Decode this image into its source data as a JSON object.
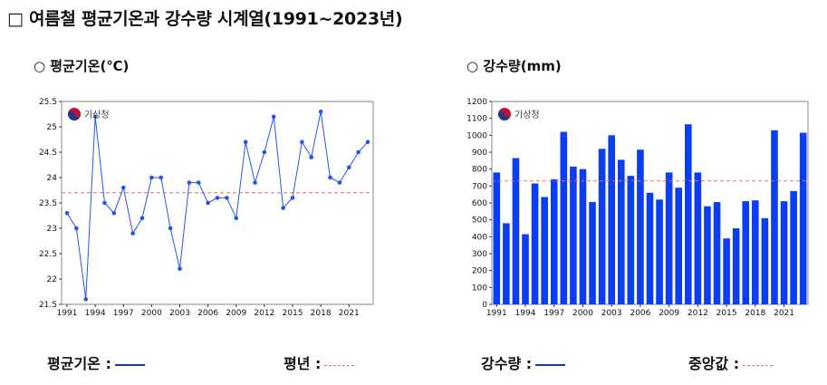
{
  "page": {
    "title": "□ 여름철 평균기온과 강수량 시계열(1991~2023년)"
  },
  "logo_text": "기상청",
  "charts_ui": {
    "left_subtitle": "○ 평균기온(℃)",
    "right_subtitle": "○ 강수량(mm)"
  },
  "legend": {
    "temp_label": "평균기온 :",
    "normal_label": "평년 :",
    "precip_label": "강수량 :",
    "median_label": "중앙값 :"
  },
  "colors": {
    "line": "#2255ee",
    "bar": "#0b3ef0",
    "ref": "#e07060"
  },
  "chart_data": [
    {
      "type": "line",
      "title": "○ 평균기온(℃)",
      "x": [
        1991,
        1992,
        1993,
        1994,
        1995,
        1996,
        1997,
        1998,
        1999,
        2000,
        2001,
        2002,
        2003,
        2004,
        2005,
        2006,
        2007,
        2008,
        2009,
        2010,
        2011,
        2012,
        2013,
        2014,
        2015,
        2016,
        2017,
        2018,
        2019,
        2020,
        2021,
        2022,
        2023
      ],
      "series": [
        {
          "name": "평균기온",
          "values": [
            23.3,
            23.0,
            21.6,
            25.2,
            23.5,
            23.3,
            23.8,
            22.9,
            23.2,
            24.0,
            24.0,
            23.0,
            22.2,
            23.9,
            23.9,
            23.5,
            23.6,
            23.6,
            23.2,
            24.7,
            23.9,
            24.5,
            25.2,
            23.4,
            23.6,
            24.7,
            24.4,
            25.3,
            24.0,
            23.9,
            24.2,
            24.5,
            24.7
          ]
        }
      ],
      "reference": {
        "name": "평년",
        "value": 23.7
      },
      "ylim": [
        21.5,
        25.5
      ],
      "yticks": [
        "21.5",
        "22",
        "22.5",
        "23",
        "23.5",
        "24",
        "24.5",
        "25",
        "25.5"
      ],
      "xticks": [
        "1991",
        "1994",
        "1997",
        "2000",
        "2003",
        "2006",
        "2009",
        "2012",
        "2015",
        "2018",
        "2021"
      ]
    },
    {
      "type": "bar",
      "title": "○ 강수량(mm)",
      "x": [
        1991,
        1992,
        1993,
        1994,
        1995,
        1996,
        1997,
        1998,
        1999,
        2000,
        2001,
        2002,
        2003,
        2004,
        2005,
        2006,
        2007,
        2008,
        2009,
        2010,
        2011,
        2012,
        2013,
        2014,
        2015,
        2016,
        2017,
        2018,
        2019,
        2020,
        2021,
        2022,
        2023
      ],
      "series": [
        {
          "name": "강수량",
          "values": [
            780,
            480,
            865,
            415,
            715,
            635,
            740,
            1020,
            815,
            800,
            605,
            920,
            1000,
            855,
            760,
            915,
            660,
            620,
            780,
            690,
            1065,
            780,
            580,
            605,
            390,
            450,
            610,
            615,
            510,
            1030,
            610,
            670,
            1015
          ]
        }
      ],
      "reference": {
        "name": "중앙값",
        "value": 730
      },
      "ylim": [
        0,
        1200
      ],
      "yticks": [
        "0",
        "100",
        "200",
        "300",
        "400",
        "500",
        "600",
        "700",
        "800",
        "900",
        "1000",
        "1100",
        "1200"
      ],
      "xticks": [
        "1991",
        "1994",
        "1997",
        "2000",
        "2003",
        "2006",
        "2009",
        "2012",
        "2015",
        "2018",
        "2021"
      ]
    }
  ]
}
